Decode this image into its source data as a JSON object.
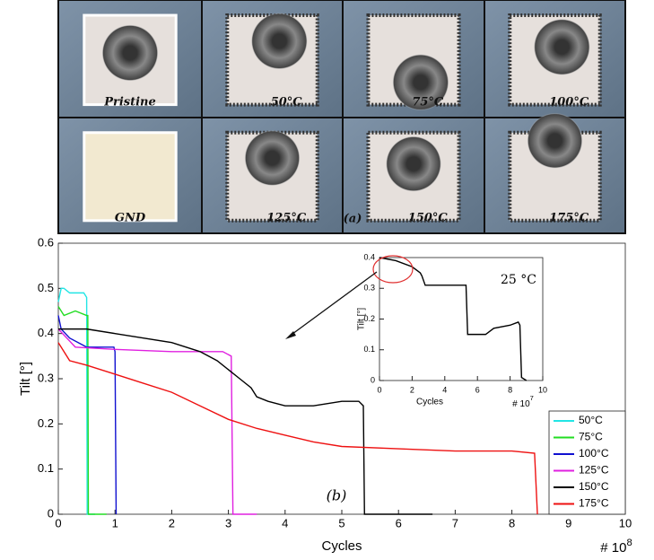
{
  "figure": {
    "photo_labels": [
      "Pristine",
      "50°C",
      "75°C",
      "100°C",
      "GND",
      "125°C",
      "150°C",
      "175°C"
    ],
    "panel_label": "(a)"
  },
  "chart_data": [
    {
      "type": "line",
      "xlabel": "Cycles",
      "ylabel": "Tilt [°]",
      "x_multiplier": "# 10",
      "x_multiplier_exp": "8",
      "annotation": "(b)",
      "xlim": [
        0,
        10
      ],
      "ylim": [
        0,
        0.6
      ],
      "xticks": [
        0,
        1,
        2,
        3,
        4,
        5,
        6,
        7,
        8,
        9,
        10
      ],
      "yticks": [
        0,
        0.1,
        0.2,
        0.3,
        0.4,
        0.5,
        0.6
      ],
      "legend": "lower right",
      "series": [
        {
          "name": "50°C",
          "color": "#22e5e5",
          "x": [
            0,
            0.05,
            0.1,
            0.2,
            0.3,
            0.45,
            0.5,
            0.51,
            0.65
          ],
          "values": [
            0.47,
            0.5,
            0.5,
            0.49,
            0.49,
            0.49,
            0.48,
            0,
            0
          ]
        },
        {
          "name": "75°C",
          "color": "#22dd22",
          "x": [
            0,
            0.1,
            0.3,
            0.5,
            0.52,
            0.53,
            0.85
          ],
          "values": [
            0.46,
            0.44,
            0.45,
            0.44,
            0.44,
            0,
            0
          ]
        },
        {
          "name": "100°C",
          "color": "#1010d0",
          "x": [
            0,
            0.05,
            0.2,
            0.5,
            0.7,
            0.98,
            1.0,
            1.02
          ],
          "values": [
            0.44,
            0.41,
            0.39,
            0.37,
            0.37,
            0.37,
            0.36,
            0
          ]
        },
        {
          "name": "125°C",
          "color": "#e020e0",
          "x": [
            0,
            0.3,
            1,
            2,
            2.9,
            3.05,
            3.08,
            3.5
          ],
          "values": [
            0.41,
            0.37,
            0.365,
            0.36,
            0.36,
            0.35,
            0,
            0
          ]
        },
        {
          "name": "150°C",
          "color": "#000000",
          "x": [
            0,
            0.5,
            1,
            1.5,
            2,
            2.5,
            2.8,
            3.2,
            3.4,
            3.5,
            3.7,
            4,
            4.5,
            5,
            5.3,
            5.38,
            5.4,
            6.6
          ],
          "values": [
            0.41,
            0.41,
            0.4,
            0.39,
            0.38,
            0.36,
            0.34,
            0.3,
            0.28,
            0.26,
            0.25,
            0.24,
            0.24,
            0.25,
            0.25,
            0.24,
            0,
            0
          ]
        },
        {
          "name": "175°C",
          "color": "#ee1111",
          "x": [
            0,
            0.2,
            0.5,
            1,
            1.5,
            2,
            2.5,
            3,
            3.5,
            4,
            4.5,
            5,
            6,
            7,
            8,
            8.4,
            8.45
          ],
          "values": [
            0.38,
            0.34,
            0.33,
            0.31,
            0.29,
            0.27,
            0.24,
            0.21,
            0.19,
            0.175,
            0.16,
            0.15,
            0.145,
            0.14,
            0.14,
            0.135,
            0
          ]
        }
      ]
    },
    {
      "type": "line",
      "xlabel": "Cycles",
      "ylabel": "Tilt [°]",
      "x_multiplier": "# 10",
      "x_multiplier_exp": "7",
      "annotation": "25 °C",
      "xlim": [
        0,
        10
      ],
      "ylim": [
        0,
        0.4
      ],
      "xticks": [
        0,
        2,
        4,
        6,
        8,
        10
      ],
      "yticks": [
        0,
        0.1,
        0.2,
        0.3,
        0.4
      ],
      "series": [
        {
          "color": "#000000",
          "x": [
            0,
            1,
            2,
            2.5,
            2.6,
            2.8,
            5.3,
            5.4,
            6.5,
            7,
            8,
            8.5,
            8.6,
            8.7,
            9
          ],
          "values": [
            0.4,
            0.39,
            0.37,
            0.35,
            0.34,
            0.31,
            0.31,
            0.15,
            0.15,
            0.17,
            0.18,
            0.19,
            0.18,
            0.01,
            0
          ]
        }
      ]
    }
  ]
}
